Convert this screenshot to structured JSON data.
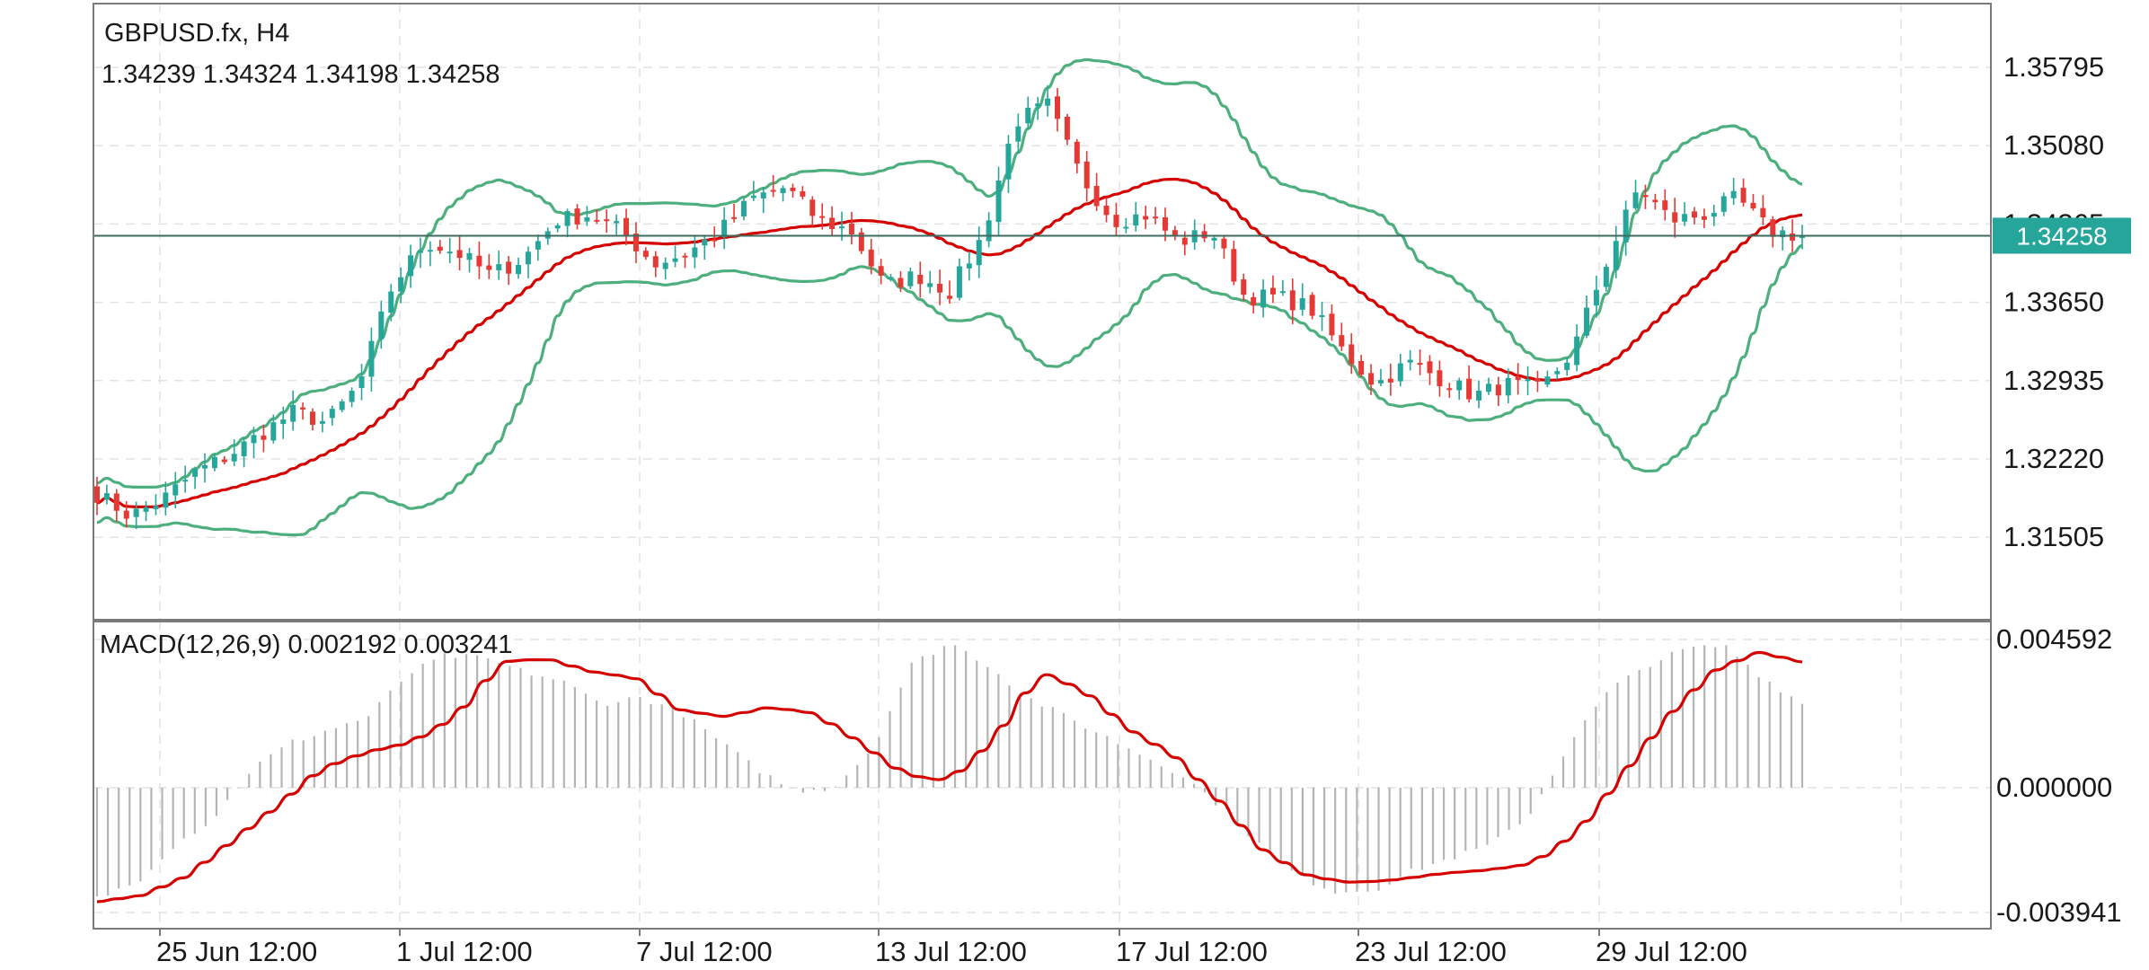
{
  "header": {
    "symbol_line": "GBPUSD.fx, H4",
    "ohlc_line": "1.34239 1.34324 1.34198 1.34258"
  },
  "macd_header": "MACD(12,26,9) 0.002192 0.003241",
  "colors": {
    "bull": "#26a69a",
    "bear": "#e53935",
    "bands": "#4caf7d",
    "middle_band": "#d50000",
    "macd_hist": "#b5b5b5",
    "macd_signal": "#d50000",
    "price_line": "#3d6b5f",
    "price_tag": "#26a69a",
    "frame": "#7a7a7a",
    "grid": "#e3e3e3"
  },
  "chart_data": [
    {
      "type": "candlestick",
      "title": "GBPUSD.fx, H4",
      "timeframe": "H4",
      "ylim": [
        1.308,
        1.362
      ],
      "y_ticks": [
        "1.35795",
        "1.35080",
        "1.34365",
        "1.33650",
        "1.32935",
        "1.32220",
        "1.31505"
      ],
      "x_ticks": [
        "25 Jun 12:00",
        "1 Jul 12:00",
        "7 Jul 12:00",
        "13 Jul 12:00",
        "17 Jul 12:00",
        "23 Jul 12:00",
        "29 Jul 12:00"
      ],
      "last_price": "1.34258",
      "close_path": [
        1.319,
        1.317,
        1.3185,
        1.321,
        1.3225,
        1.3245,
        1.3265,
        1.3255,
        1.329,
        1.338,
        1.342,
        1.341,
        1.339,
        1.3405,
        1.344,
        1.3445,
        1.343,
        1.34,
        1.341,
        1.343,
        1.346,
        1.347,
        1.344,
        1.343,
        1.338,
        1.339,
        1.3375,
        1.3425,
        1.353,
        1.3545,
        1.348,
        1.344,
        1.3445,
        1.342,
        1.343,
        1.337,
        1.337,
        1.336,
        1.332,
        1.329,
        1.331,
        1.3295,
        1.328,
        1.329,
        1.3285,
        1.332,
        1.34,
        1.347,
        1.344,
        1.3445,
        1.346,
        1.343,
        1.3426
      ],
      "indicators": [
        "Bollinger Bands (upper / middle / lower)"
      ]
    },
    {
      "type": "bar",
      "title": "MACD(12,26,9) 0.002192 0.003241",
      "macd_value": 0.002192,
      "signal_value": 0.003241,
      "ylim": [
        -0.003941,
        0.004592
      ],
      "y_ticks": [
        "0.004592",
        "0.000000",
        "-0.003941"
      ],
      "hist_path": [
        -0.0035,
        -0.003,
        -0.0018,
        -0.001,
        0.0006,
        0.0014,
        0.0018,
        0.0022,
        0.0035,
        0.0041,
        0.004,
        0.0036,
        0.0033,
        0.0026,
        0.0028,
        0.0024,
        0.0015,
        0.0006,
        -0.0001,
        0.0,
        0.0012,
        0.0038,
        0.0045,
        0.0038,
        0.0028,
        0.0022,
        0.0016,
        0.001,
        0.0004,
        -0.0006,
        -0.0018,
        -0.0028,
        -0.0033,
        -0.0032,
        -0.0026,
        -0.0022,
        -0.0018,
        -0.0008,
        0.0014,
        0.003,
        0.0038,
        0.0043,
        0.0044,
        0.0034,
        0.0026
      ],
      "signal_path": [
        -0.0036,
        -0.0034,
        -0.0028,
        -0.0017,
        -0.0006,
        0.0006,
        0.0011,
        0.0014,
        0.0022,
        0.0039,
        0.004,
        0.0036,
        0.0034,
        0.0024,
        0.0022,
        0.0025,
        0.0023,
        0.0014,
        0.0004,
        0.0002,
        0.0015,
        0.0036,
        0.003,
        0.0018,
        0.001,
        -0.0004,
        -0.002,
        -0.0028,
        -0.003,
        -0.0029,
        -0.0027,
        -0.0026,
        -0.0024,
        -0.0014,
        0.0004,
        0.0022,
        0.0036,
        0.0042,
        0.0039
      ]
    }
  ]
}
